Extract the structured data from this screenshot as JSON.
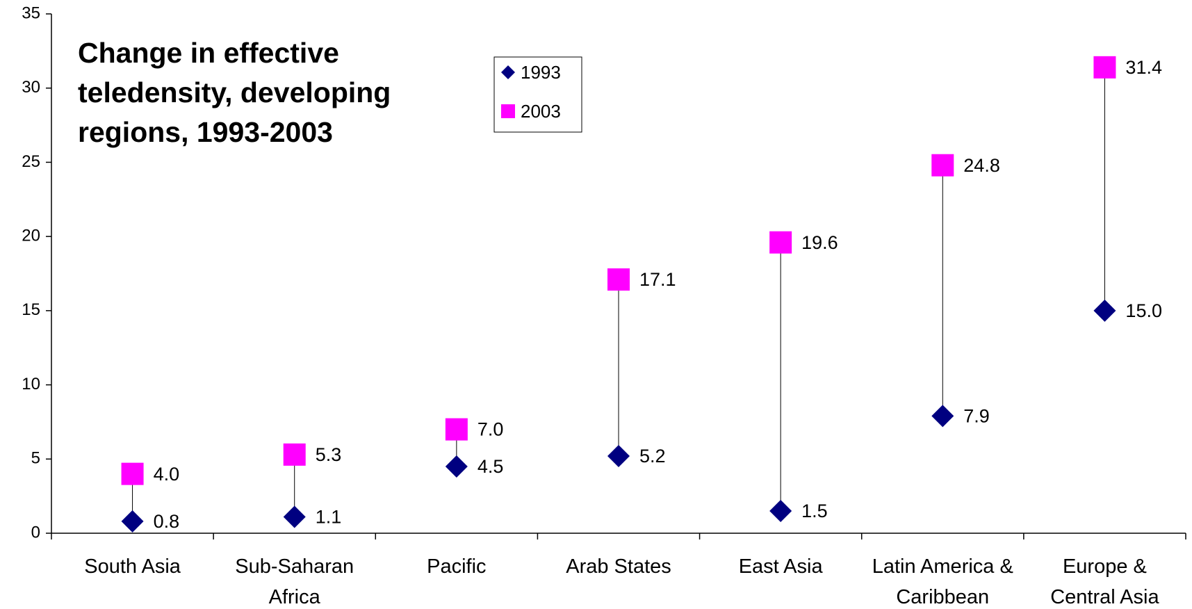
{
  "chart_data": {
    "type": "dot-range",
    "title": "Change in effective teledensity, developing regions, 1993-2003",
    "categories": [
      "South Asia",
      "Sub-Saharan Africa",
      "Pacific",
      "Arab States",
      "East Asia",
      "Latin America & Caribbean",
      "Europe & Central Asia"
    ],
    "series": [
      {
        "name": "1993",
        "color": "#000080",
        "marker": "diamond",
        "values": [
          0.8,
          1.1,
          4.5,
          5.2,
          1.5,
          7.9,
          15.0
        ],
        "value_labels": [
          "0.8",
          "1.1",
          "4.5",
          "5.2",
          "1.5",
          "7.9",
          "15.0"
        ]
      },
      {
        "name": "2003",
        "color": "#ff00ff",
        "marker": "square",
        "values": [
          4.0,
          5.3,
          7.0,
          17.1,
          19.6,
          24.8,
          31.4
        ],
        "value_labels": [
          "4.0",
          "5.3",
          "7.0",
          "17.1",
          "19.6",
          "24.8",
          "31.4"
        ]
      }
    ],
    "ylim": [
      0,
      35
    ],
    "yticks": [
      0,
      5,
      10,
      15,
      20,
      25,
      30,
      35
    ],
    "grid": false
  }
}
